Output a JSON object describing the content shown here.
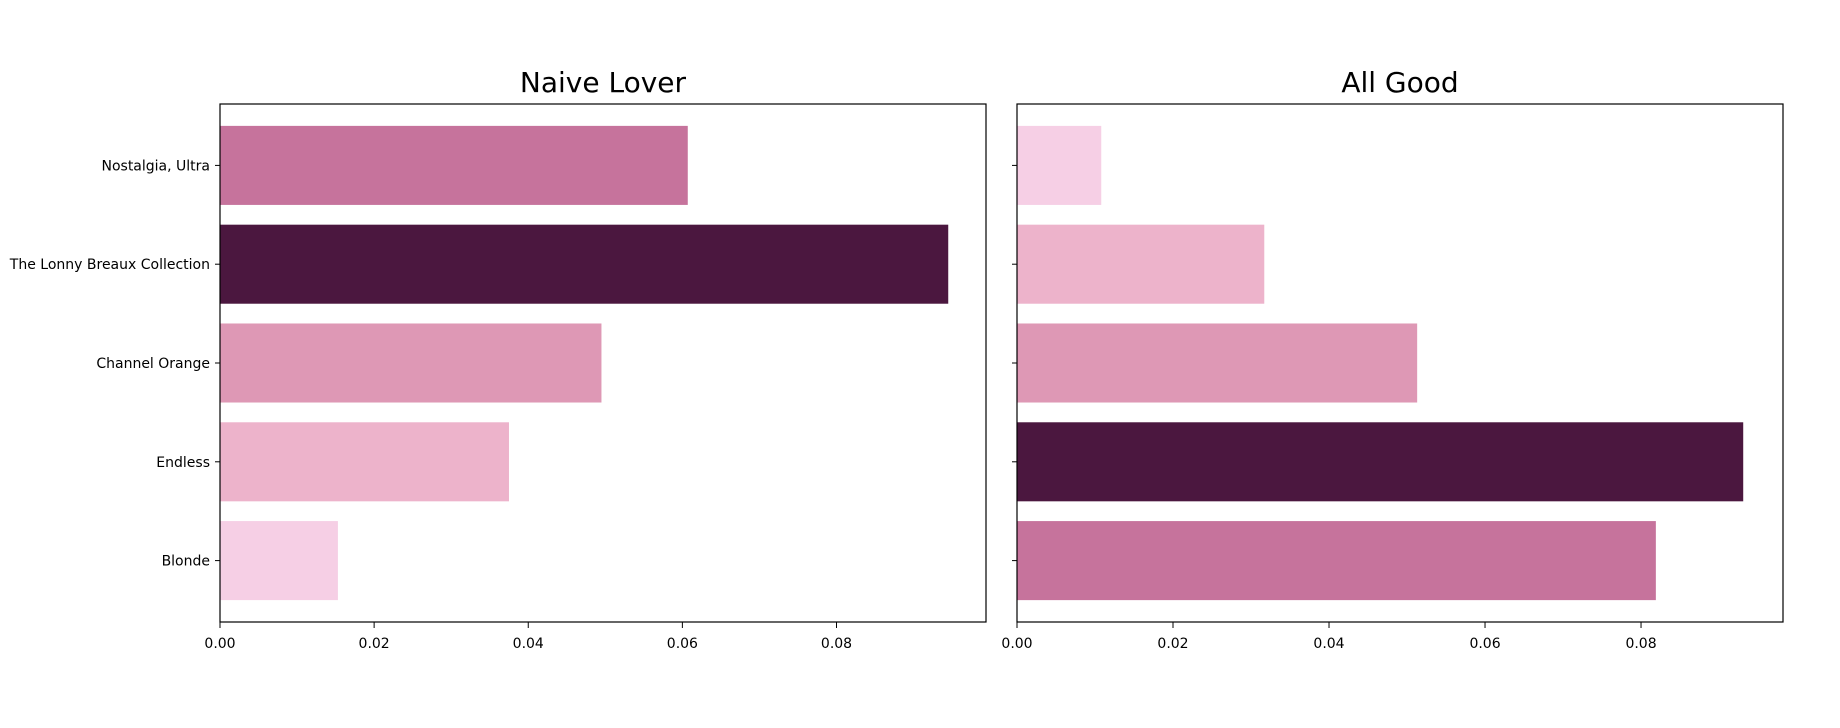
{
  "chart_data": [
    {
      "type": "bar",
      "orientation": "horizontal",
      "title": "Naive Lover",
      "categories": [
        "Nostalgia, Ultra",
        "The Lonny Breaux Collection",
        "Channel Orange",
        "Endless",
        "Blonde"
      ],
      "values": [
        0.0607,
        0.0945,
        0.0495,
        0.0375,
        0.0153
      ],
      "colors": [
        "#c6739c",
        "#4b173f",
        "#de98b5",
        "#edb3cb",
        "#f6cfe5"
      ],
      "xlim": [
        0,
        0.0994
      ],
      "xticks": [
        "0.00",
        "0.02",
        "0.04",
        "0.06",
        "0.08"
      ],
      "xtick_values": [
        0,
        0.02,
        0.04,
        0.06,
        0.08
      ],
      "show_category_labels": true,
      "grid": false
    },
    {
      "type": "bar",
      "orientation": "horizontal",
      "title": "All Good",
      "categories": [
        "Nostalgia, Ultra",
        "The Lonny Breaux Collection",
        "Channel Orange",
        "Endless",
        "Blonde"
      ],
      "values": [
        0.0108,
        0.0317,
        0.0513,
        0.0931,
        0.0819
      ],
      "colors": [
        "#f6cfe5",
        "#edb3cb",
        "#de98b5",
        "#4b173f",
        "#c6739c"
      ],
      "xlim": [
        0,
        0.0982
      ],
      "xticks": [
        "0.00",
        "0.02",
        "0.04",
        "0.06",
        "0.08"
      ],
      "xtick_values": [
        0,
        0.02,
        0.04,
        0.06,
        0.08
      ],
      "show_category_labels": false,
      "grid": false
    }
  ]
}
